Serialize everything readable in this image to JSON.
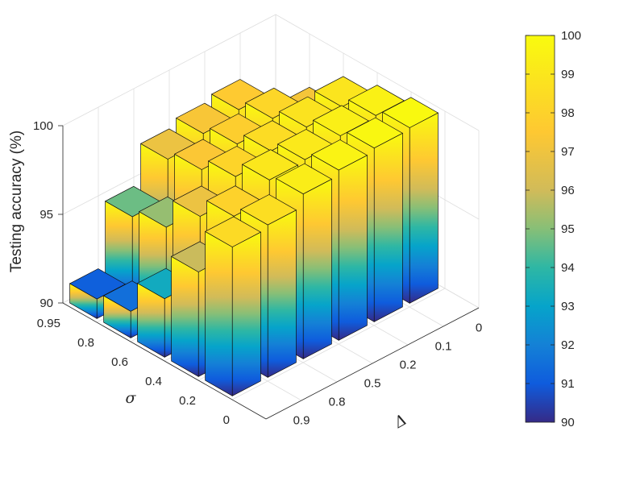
{
  "chart_data": {
    "type": "bar3d",
    "zlabel": "Testing accuracy (%)",
    "xlabel": "Δ",
    "ylabel": "σ",
    "x_ticks": [
      "0.9",
      "0.8",
      "0.5",
      "0.2",
      "0.1",
      "0"
    ],
    "y_ticks": [
      "0",
      "0.2",
      "0.4",
      "0.6",
      "0.8",
      "0.95"
    ],
    "z_ticks": [
      "90",
      "95",
      "100"
    ],
    "zlim": [
      90,
      100
    ],
    "colormap": "parula",
    "colorbar": {
      "ticks": [
        "90",
        "91",
        "92",
        "93",
        "94",
        "95",
        "96",
        "97",
        "98",
        "99",
        "100"
      ],
      "range": [
        90,
        100
      ]
    },
    "bars": [
      {
        "delta": "0.9",
        "sigma": "0.95",
        "value": 91.1
      },
      {
        "delta": "0.9",
        "sigma": "0.8",
        "value": 91.5
      },
      {
        "delta": "0.9",
        "sigma": "0.6",
        "value": 93.3
      },
      {
        "delta": "0.9",
        "sigma": "0.4",
        "value": 95.9
      },
      {
        "delta": "0.9",
        "sigma": "0.2",
        "value": 98.4
      },
      {
        "delta": "0.8",
        "sigma": "0.95",
        "value": 94.7
      },
      {
        "delta": "0.8",
        "sigma": "0.8",
        "value": 95.2
      },
      {
        "delta": "0.8",
        "sigma": "0.6",
        "value": 96.9
      },
      {
        "delta": "0.8",
        "sigma": "0.4",
        "value": 98.0
      },
      {
        "delta": "0.8",
        "sigma": "0.2",
        "value": 98.6
      },
      {
        "delta": "0.5",
        "sigma": "0.95",
        "value": 96.9
      },
      {
        "delta": "0.5",
        "sigma": "0.8",
        "value": 97.4
      },
      {
        "delta": "0.5",
        "sigma": "0.6",
        "value": 98.1
      },
      {
        "delta": "0.5",
        "sigma": "0.4",
        "value": 99.0
      },
      {
        "delta": "0.5",
        "sigma": "0.2",
        "value": 99.3
      },
      {
        "delta": "0.2",
        "sigma": "0.95",
        "value": 97.3
      },
      {
        "delta": "0.2",
        "sigma": "0.8",
        "value": 97.8
      },
      {
        "delta": "0.2",
        "sigma": "0.6",
        "value": 98.5
      },
      {
        "delta": "0.2",
        "sigma": "0.4",
        "value": 99.1
      },
      {
        "delta": "0.2",
        "sigma": "0.2",
        "value": 99.6
      },
      {
        "delta": "0.1",
        "sigma": "0.95",
        "value": 97.6
      },
      {
        "delta": "0.1",
        "sigma": "0.8",
        "value": 98.2
      },
      {
        "delta": "0.1",
        "sigma": "0.6",
        "value": 98.8
      },
      {
        "delta": "0.1",
        "sigma": "0.4",
        "value": 99.4
      },
      {
        "delta": "0.1",
        "sigma": "0.2",
        "value": 99.8
      },
      {
        "delta": "0",
        "sigma": "0.95",
        "value": 90.0
      },
      {
        "delta": "0",
        "sigma": "0.8",
        "value": 97.2
      },
      {
        "delta": "0",
        "sigma": "0.6",
        "value": 98.9
      },
      {
        "delta": "0",
        "sigma": "0.4",
        "value": 99.5
      },
      {
        "delta": "0",
        "sigma": "0.2",
        "value": 99.9
      }
    ]
  }
}
